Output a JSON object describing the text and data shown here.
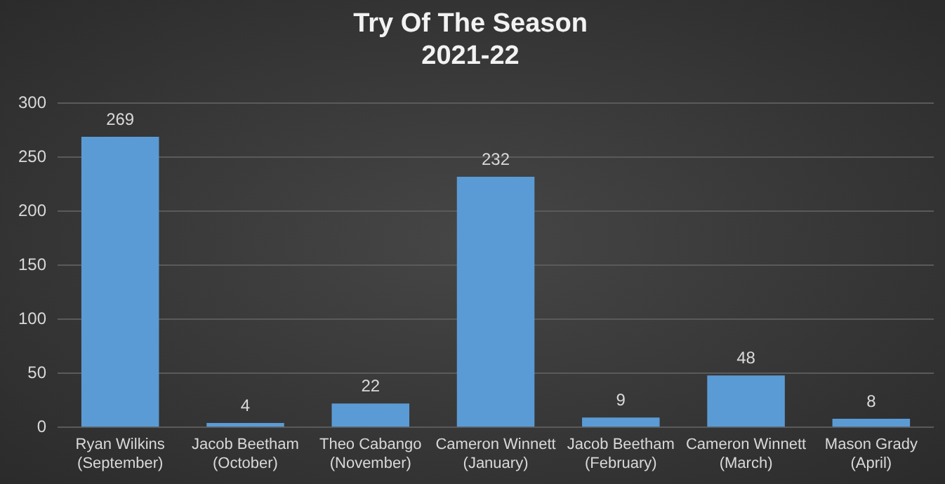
{
  "chart_data": {
    "type": "bar",
    "title": "Try Of The Season\n2021-22",
    "categories": [
      "Ryan Wilkins (September)",
      "Jacob Beetham (October)",
      "Theo Cabango (November)",
      "Cameron Winnett (January)",
      "Jacob Beetham (February)",
      "Cameron Winnett (March)",
      "Mason Grady (April)"
    ],
    "values": [
      269,
      4,
      22,
      232,
      9,
      48,
      8
    ],
    "color": "#5b9bd5",
    "ylim": [
      0,
      300
    ],
    "yticks": [
      0,
      50,
      100,
      150,
      200,
      250,
      300
    ],
    "grid": "y",
    "data_labels": true,
    "legend": false
  }
}
